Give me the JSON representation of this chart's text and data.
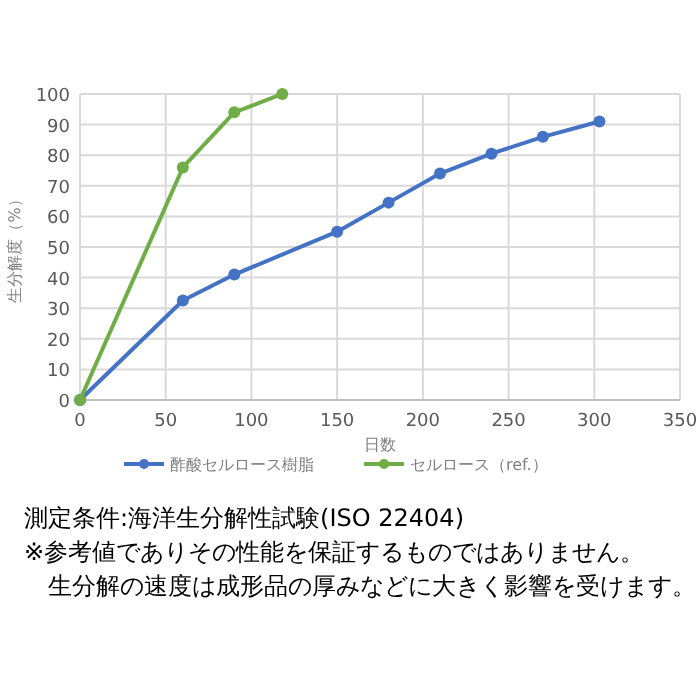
{
  "chart_data": {
    "type": "line",
    "xlabel": "日数",
    "ylabel": "生分解度（%）",
    "xlim": [
      0,
      350
    ],
    "xticks": [
      0,
      50,
      100,
      150,
      200,
      250,
      300,
      350
    ],
    "ylim": [
      0,
      100
    ],
    "yticks": [
      0,
      10,
      20,
      30,
      40,
      50,
      60,
      70,
      80,
      90,
      100
    ],
    "grid": true,
    "legend": "bottom",
    "marker": "circle",
    "line_style": "solid",
    "series": [
      {
        "name": "酢酸セルロース樹脂",
        "color": "#4472c4",
        "x": [
          0,
          60,
          90,
          150,
          180,
          210,
          240,
          270,
          303
        ],
        "values": [
          0,
          32.5,
          41,
          55,
          64.5,
          74,
          80.5,
          86,
          91
        ]
      },
      {
        "name": "セルロース（ref.）",
        "color": "#70ad47",
        "x": [
          0,
          60,
          90,
          118
        ],
        "values": [
          0,
          76,
          94,
          100
        ]
      }
    ],
    "annotations": [
      "測定条件:海洋生分解性試験(ISO 22404)",
      "※参考値でありその性能を保証するものではありません。",
      "　生分解の速度は成形品の厚みなどに大きく影響を受けます。"
    ]
  }
}
